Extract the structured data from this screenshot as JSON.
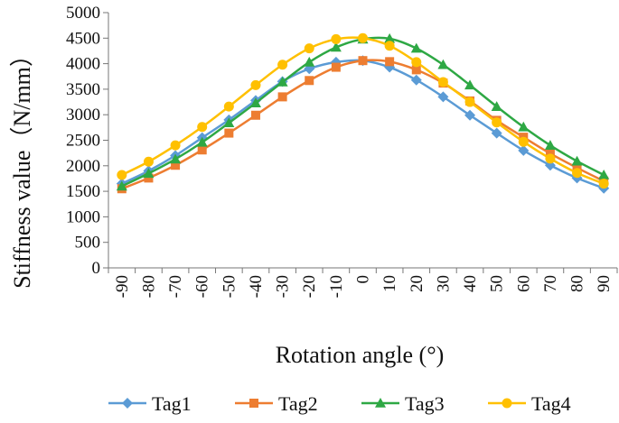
{
  "chart_data": {
    "type": "line",
    "xlabel": "Rotation angle (°)",
    "ylabel": "Stiffness value（N/mm）",
    "x": [
      -90,
      -80,
      -70,
      -60,
      -50,
      -40,
      -30,
      -20,
      -10,
      0,
      10,
      20,
      30,
      40,
      50,
      60,
      70,
      80,
      90
    ],
    "x_tick_labels": [
      "-90",
      "-80",
      "-70",
      "-60",
      "-50",
      "-40",
      "-30",
      "-20",
      "-10",
      "0",
      "10",
      "20",
      "30",
      "40",
      "50",
      "60",
      "70",
      "80",
      "90"
    ],
    "ylim": [
      0,
      5000
    ],
    "y_ticks": [
      0,
      500,
      1000,
      1500,
      2000,
      2500,
      3000,
      3500,
      4000,
      4500,
      5000
    ],
    "y_tick_labels": [
      "0",
      "500",
      "1000",
      "1500",
      "2000",
      "2500",
      "3000",
      "3500",
      "4000",
      "4500",
      "5000"
    ],
    "grid": false,
    "legend_position": "bottom",
    "series": [
      {
        "name": "Tag1",
        "color": "#5B9BD5",
        "marker": "diamond",
        "values": [
          1650,
          1900,
          2200,
          2550,
          2900,
          3280,
          3650,
          3900,
          4030,
          4060,
          3930,
          3680,
          3350,
          2990,
          2640,
          2300,
          2010,
          1760,
          1560
        ]
      },
      {
        "name": "Tag2",
        "color": "#ED7D31",
        "marker": "square",
        "values": [
          1550,
          1760,
          2010,
          2310,
          2640,
          2990,
          3350,
          3670,
          3930,
          4060,
          4040,
          3880,
          3620,
          3270,
          2890,
          2560,
          2240,
          1960,
          1700
        ]
      },
      {
        "name": "Tag3",
        "color": "#2EA844",
        "marker": "triangle",
        "values": [
          1600,
          1850,
          2130,
          2460,
          2840,
          3230,
          3640,
          4030,
          4320,
          4480,
          4490,
          4300,
          3980,
          3580,
          3160,
          2760,
          2400,
          2090,
          1820
        ]
      },
      {
        "name": "Tag4",
        "color": "#FFC000",
        "marker": "circle",
        "values": [
          1820,
          2080,
          2400,
          2760,
          3160,
          3580,
          3980,
          4300,
          4480,
          4500,
          4350,
          4030,
          3640,
          3250,
          2850,
          2470,
          2140,
          1860,
          1650
        ]
      }
    ]
  }
}
